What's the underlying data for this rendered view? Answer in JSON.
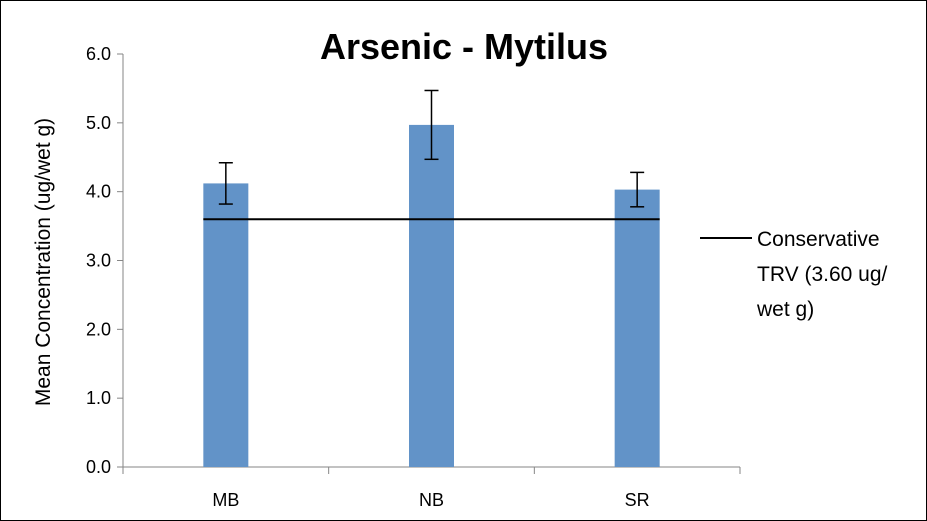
{
  "chart_data": {
    "type": "bar",
    "title": "Arsenic - Mytilus",
    "xlabel": "",
    "ylabel": "Mean Concentration (ug/wet g)",
    "categories": [
      "MB",
      "NB",
      "SR"
    ],
    "series": [
      {
        "name": "",
        "values": [
          4.12,
          4.97,
          4.03
        ],
        "error": [
          0.3,
          0.5,
          0.25
        ],
        "color": "#6293C8"
      }
    ],
    "reference_line": {
      "name": "Conservative TRV (3.60 ug/wet g)",
      "legend_lines": [
        "Conservative",
        "TRV (3.60 ug/",
        "wet g)"
      ],
      "value": 3.6,
      "color": "#000000"
    },
    "ylim": [
      0,
      6
    ],
    "yticks": [
      "0.0",
      "1.0",
      "2.0",
      "3.0",
      "4.0",
      "5.0",
      "6.0"
    ],
    "grid": false,
    "legend_position": "right"
  }
}
